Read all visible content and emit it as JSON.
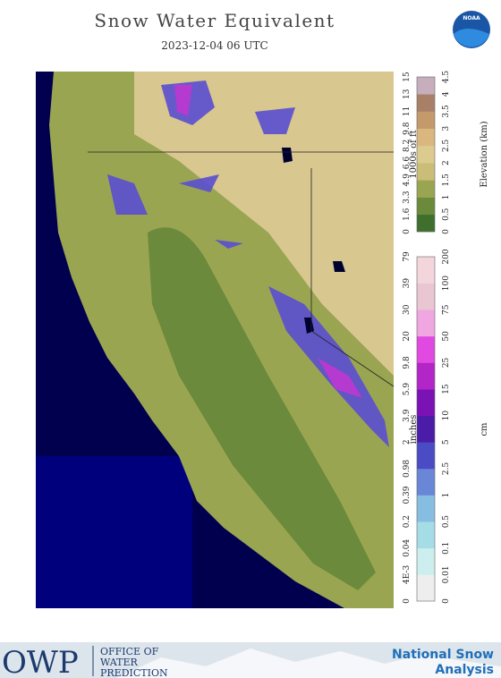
{
  "header": {
    "title": "Snow Water Equivalent",
    "date": "2023-12-04 06 UTC",
    "logo": "NOAA"
  },
  "legends": [
    {
      "left_title": "1000s of ft",
      "right_title": "Elevation (km)",
      "left_ticks": [
        "0",
        "1.6",
        "3.3",
        "4.9",
        "6.6",
        "8.2",
        "9.8",
        "11",
        "13",
        "15"
      ],
      "right_ticks": [
        "0",
        "0.5",
        "1",
        "1.5",
        "2",
        "2.5",
        "3",
        "3.5",
        "4",
        "4.5"
      ],
      "colors": [
        "#3f6f2c",
        "#6b8a3c",
        "#9aa552",
        "#c9bd78",
        "#dccb8e",
        "#d9b77e",
        "#c49a6c",
        "#a88068",
        "#c7aebd"
      ]
    },
    {
      "left_title": "inches",
      "right_title": "cm",
      "left_ticks": [
        "0",
        "4E-3",
        "0.04",
        "0.2",
        "0.39",
        "0.98",
        "2",
        "3.9",
        "5.9",
        "9.8",
        "20",
        "30",
        "39",
        "79"
      ],
      "right_ticks": [
        "0",
        "0.01",
        "0.1",
        "0.5",
        "1",
        "2.5",
        "5",
        "10",
        "15",
        "25",
        "50",
        "75",
        "100",
        "200"
      ],
      "colors": [
        "#eeeeee",
        "#cdeeee",
        "#a6dce6",
        "#86bde0",
        "#6a86d6",
        "#4b4bc4",
        "#4a1ca8",
        "#7a12b4",
        "#b226c8",
        "#e04ae0",
        "#f0a6e0",
        "#eac6d2",
        "#f2d6dc"
      ]
    }
  ],
  "footer": {
    "owp": "OWP",
    "office": [
      "OFFICE OF",
      "WATER",
      "PREDICTION"
    ],
    "nsa": [
      "National Snow",
      "Analysis"
    ]
  }
}
